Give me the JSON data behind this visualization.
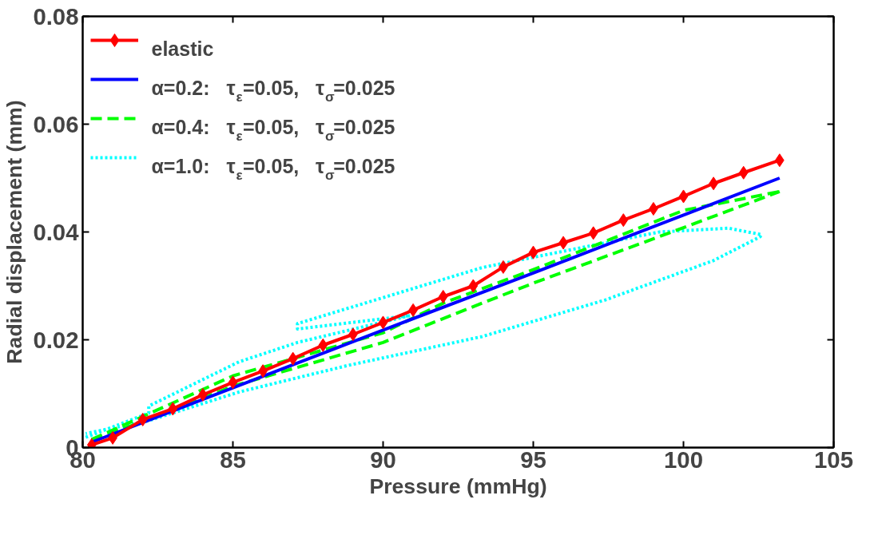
{
  "chart_data": {
    "type": "line",
    "xlabel": "Pressure (mmHg)",
    "ylabel": "Radial displacement (mm)",
    "xlim": [
      80,
      105
    ],
    "ylim": [
      0,
      0.08
    ],
    "xticks": [
      80,
      85,
      90,
      95,
      100,
      105
    ],
    "yticks": [
      0,
      0.02,
      0.04,
      0.06,
      0.08
    ],
    "grid": false,
    "legend": "top left",
    "series": [
      {
        "name": "elastic",
        "color": "#ff0000",
        "line_style": "solid",
        "marker": "diamond",
        "x": [
          80.3,
          81,
          82,
          83,
          84,
          85,
          86,
          87,
          88,
          89,
          90,
          91,
          92,
          93,
          94,
          95,
          96,
          97,
          98,
          99,
          100,
          101,
          102,
          103.2
        ],
        "values": [
          0.0005,
          0.0018,
          0.0052,
          0.0072,
          0.0098,
          0.0121,
          0.0142,
          0.0165,
          0.019,
          0.021,
          0.0232,
          0.0255,
          0.028,
          0.03,
          0.0335,
          0.0362,
          0.038,
          0.0398,
          0.0422,
          0.0443,
          0.0466,
          0.049,
          0.051,
          0.0533
        ]
      },
      {
        "name": "α=0.2:   τ$_{ε}$=0.05,   τ$_{σ}$=0.025",
        "color": "#0000ff",
        "line_style": "solid",
        "marker": "none",
        "x": [
          80.3,
          90,
          95,
          103.2
        ],
        "values": [
          0.001,
          0.0218,
          0.0324,
          0.05
        ]
      },
      {
        "name": "α=0.4:   τ$_{ε}$=0.05,   τ$_{σ}$=0.025",
        "color": "#00ff00",
        "line_style": "dashed",
        "marker": "none",
        "x": [
          80.3,
          85,
          90,
          92,
          95,
          100,
          103.2
        ],
        "values": [
          0.0015,
          0.0133,
          0.0213,
          0.0268,
          0.033,
          0.044,
          0.0475
        ]
      },
      {
        "color": "#00ff00",
        "line_style": "dashed",
        "marker": "none",
        "x": [
          80.3,
          82,
          85,
          90,
          93.3,
          95,
          100,
          103.2
        ],
        "values": [
          0.0015,
          0.0048,
          0.0114,
          0.0195,
          0.0268,
          0.0305,
          0.0408,
          0.0475
        ]
      },
      {
        "name": "α=1.0:   τ$_{ε}$=0.05,   τ$_{σ}$=0.025",
        "color": "#00ffff",
        "line_style": "dotted",
        "marker": "none",
        "x": [
          80.1,
          82.2,
          82.2,
          85.2,
          87.15,
          90.9,
          87.15,
          87.15,
          93.3,
          99.2,
          101.5,
          102.6,
          102.55,
          101,
          97.4,
          93.3,
          88.8,
          85.2,
          82.2,
          80.1
        ],
        "values": [
          0.0019,
          0.0064,
          0.0077,
          0.0159,
          0.0195,
          0.0245,
          0.022,
          0.023,
          0.0334,
          0.04,
          0.0407,
          0.0395,
          0.0391,
          0.0347,
          0.0274,
          0.0206,
          0.0152,
          0.0103,
          0.005,
          0.0026
        ]
      }
    ]
  }
}
